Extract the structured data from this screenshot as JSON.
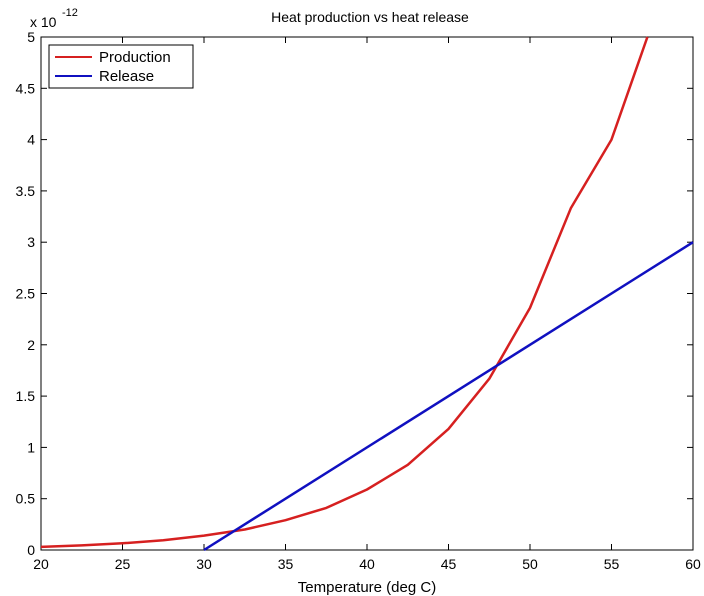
{
  "chart_data": {
    "type": "line",
    "title": "Heat production vs heat release",
    "xlabel": "Temperature (deg C)",
    "ylabel": "",
    "xlim": [
      20,
      60
    ],
    "ylim": [
      0,
      5
    ],
    "y_exponent_label": "x 10",
    "y_exponent": "-12",
    "x_ticks": [
      "20",
      "25",
      "30",
      "35",
      "40",
      "45",
      "50",
      "55",
      "60"
    ],
    "y_ticks": [
      "0",
      "0.5",
      "1",
      "1.5",
      "2",
      "2.5",
      "3",
      "3.5",
      "4",
      "4.5",
      "5"
    ],
    "grid": false,
    "legend_position": "top-left",
    "series": [
      {
        "name": "Production",
        "color": "#d62020",
        "x": [
          20,
          22.5,
          25,
          27.5,
          30,
          32.5,
          35,
          37.5,
          40,
          42.5,
          45,
          47.5,
          50,
          52.5,
          55,
          57.2
        ],
        "y": [
          0.03,
          0.045,
          0.065,
          0.095,
          0.14,
          0.2,
          0.29,
          0.41,
          0.59,
          0.83,
          1.18,
          1.67,
          2.36,
          3.33,
          4.0,
          5.0
        ]
      },
      {
        "name": "Release",
        "color": "#1010c0",
        "x": [
          30,
          60
        ],
        "y": [
          0,
          3
        ]
      }
    ]
  }
}
